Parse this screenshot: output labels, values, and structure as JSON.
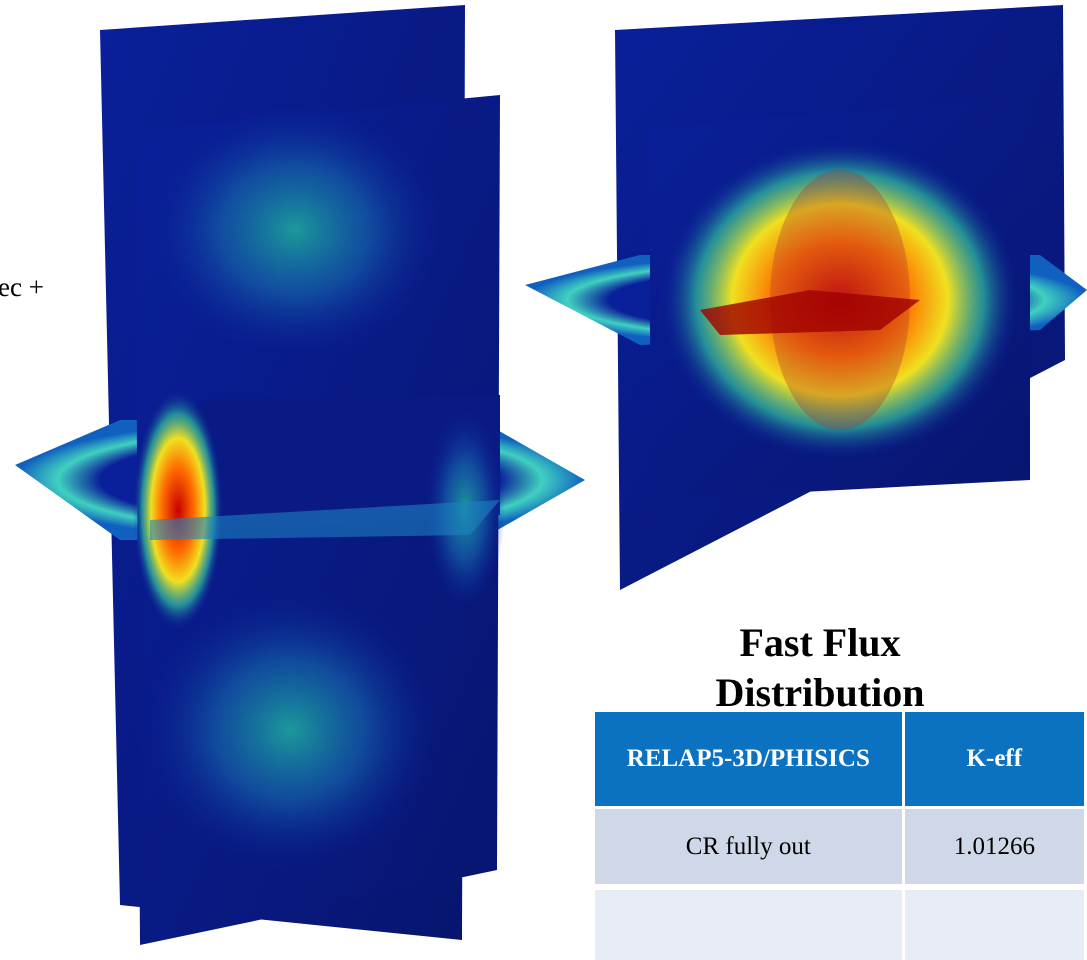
{
  "slide": {
    "left_text": "ec +",
    "figure_title": "Fast Flux Distribution",
    "table": {
      "header": [
        "RELAP5-3D/PHISICS",
        "K-eff"
      ],
      "rows": [
        [
          "CR fully out",
          "1.01266"
        ]
      ]
    }
  }
}
